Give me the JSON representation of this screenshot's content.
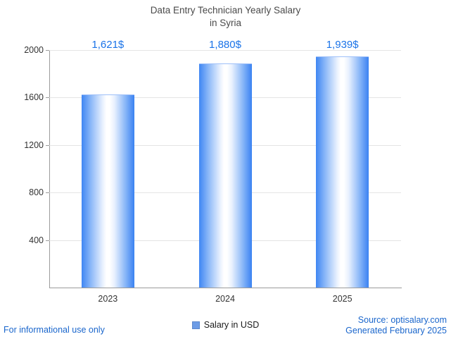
{
  "title": {
    "line1": "Data Entry Technician Yearly Salary",
    "line2": "in Syria"
  },
  "chart_data": {
    "type": "bar",
    "title": "Data Entry Technician Yearly Salary in Syria",
    "categories": [
      "2023",
      "2024",
      "2025"
    ],
    "series": [
      {
        "name": "Salary in USD",
        "values": [
          1621,
          1880,
          1939
        ]
      }
    ],
    "value_labels": [
      "1,621$",
      "1,880$",
      "1,939$"
    ],
    "ylim": [
      0,
      2000
    ],
    "yticks": [
      400,
      800,
      1200,
      1600,
      2000
    ],
    "grid": true,
    "legend_position": "bottom",
    "xlabel": "",
    "ylabel": ""
  },
  "legend": {
    "label": "Salary in USD"
  },
  "footer": {
    "left": "For informational use only",
    "source": "Source: optisalary.com",
    "generated": "Generated February 2025"
  },
  "colors": {
    "bar_blue": "#3f86f3",
    "value_label_blue": "#1a73e8",
    "link_blue": "#1a66cc",
    "gridline": "#e4e4e4",
    "axis": "#9b9b9b"
  }
}
